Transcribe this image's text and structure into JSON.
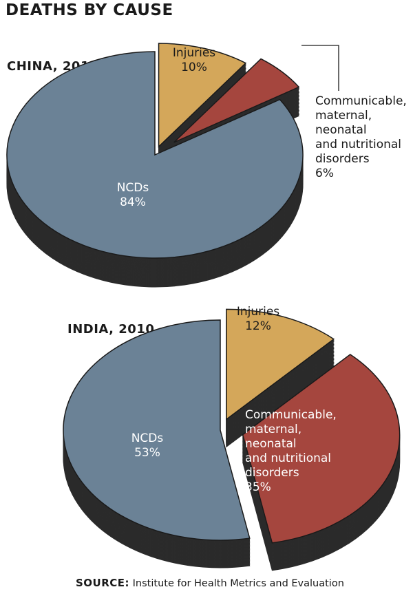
{
  "title": "DEATHS BY CAUSE",
  "source_label": "SOURCE:",
  "source_text": "Institute for Health Metrics and Evaluation",
  "colors": {
    "ncd": "#6b8296",
    "injuries": "#d4a75a",
    "communicable": "#a5463e",
    "side": "#2b2b2b",
    "outline": "#1a1a1a"
  },
  "chart_data": [
    {
      "type": "pie",
      "title": "CHINA, 2010",
      "slices": [
        {
          "label": "NCDs",
          "value": 84,
          "value_label": "84%"
        },
        {
          "label": "Injuries",
          "value": 10,
          "value_label": "10%"
        },
        {
          "label": "Communicable,\nmaternal,\nneonatal\nand nutritional\ndisorders",
          "value": 6,
          "value_label": "6%"
        }
      ]
    },
    {
      "type": "pie",
      "title": "INDIA, 2010",
      "slices": [
        {
          "label": "NCDs",
          "value": 53,
          "value_label": "53%"
        },
        {
          "label": "Injuries",
          "value": 12,
          "value_label": "12%"
        },
        {
          "label": "Communicable,\nmaternal,\nneonatal\nand nutritional\ndisorders",
          "value": 35,
          "value_label": "35%"
        }
      ]
    }
  ]
}
